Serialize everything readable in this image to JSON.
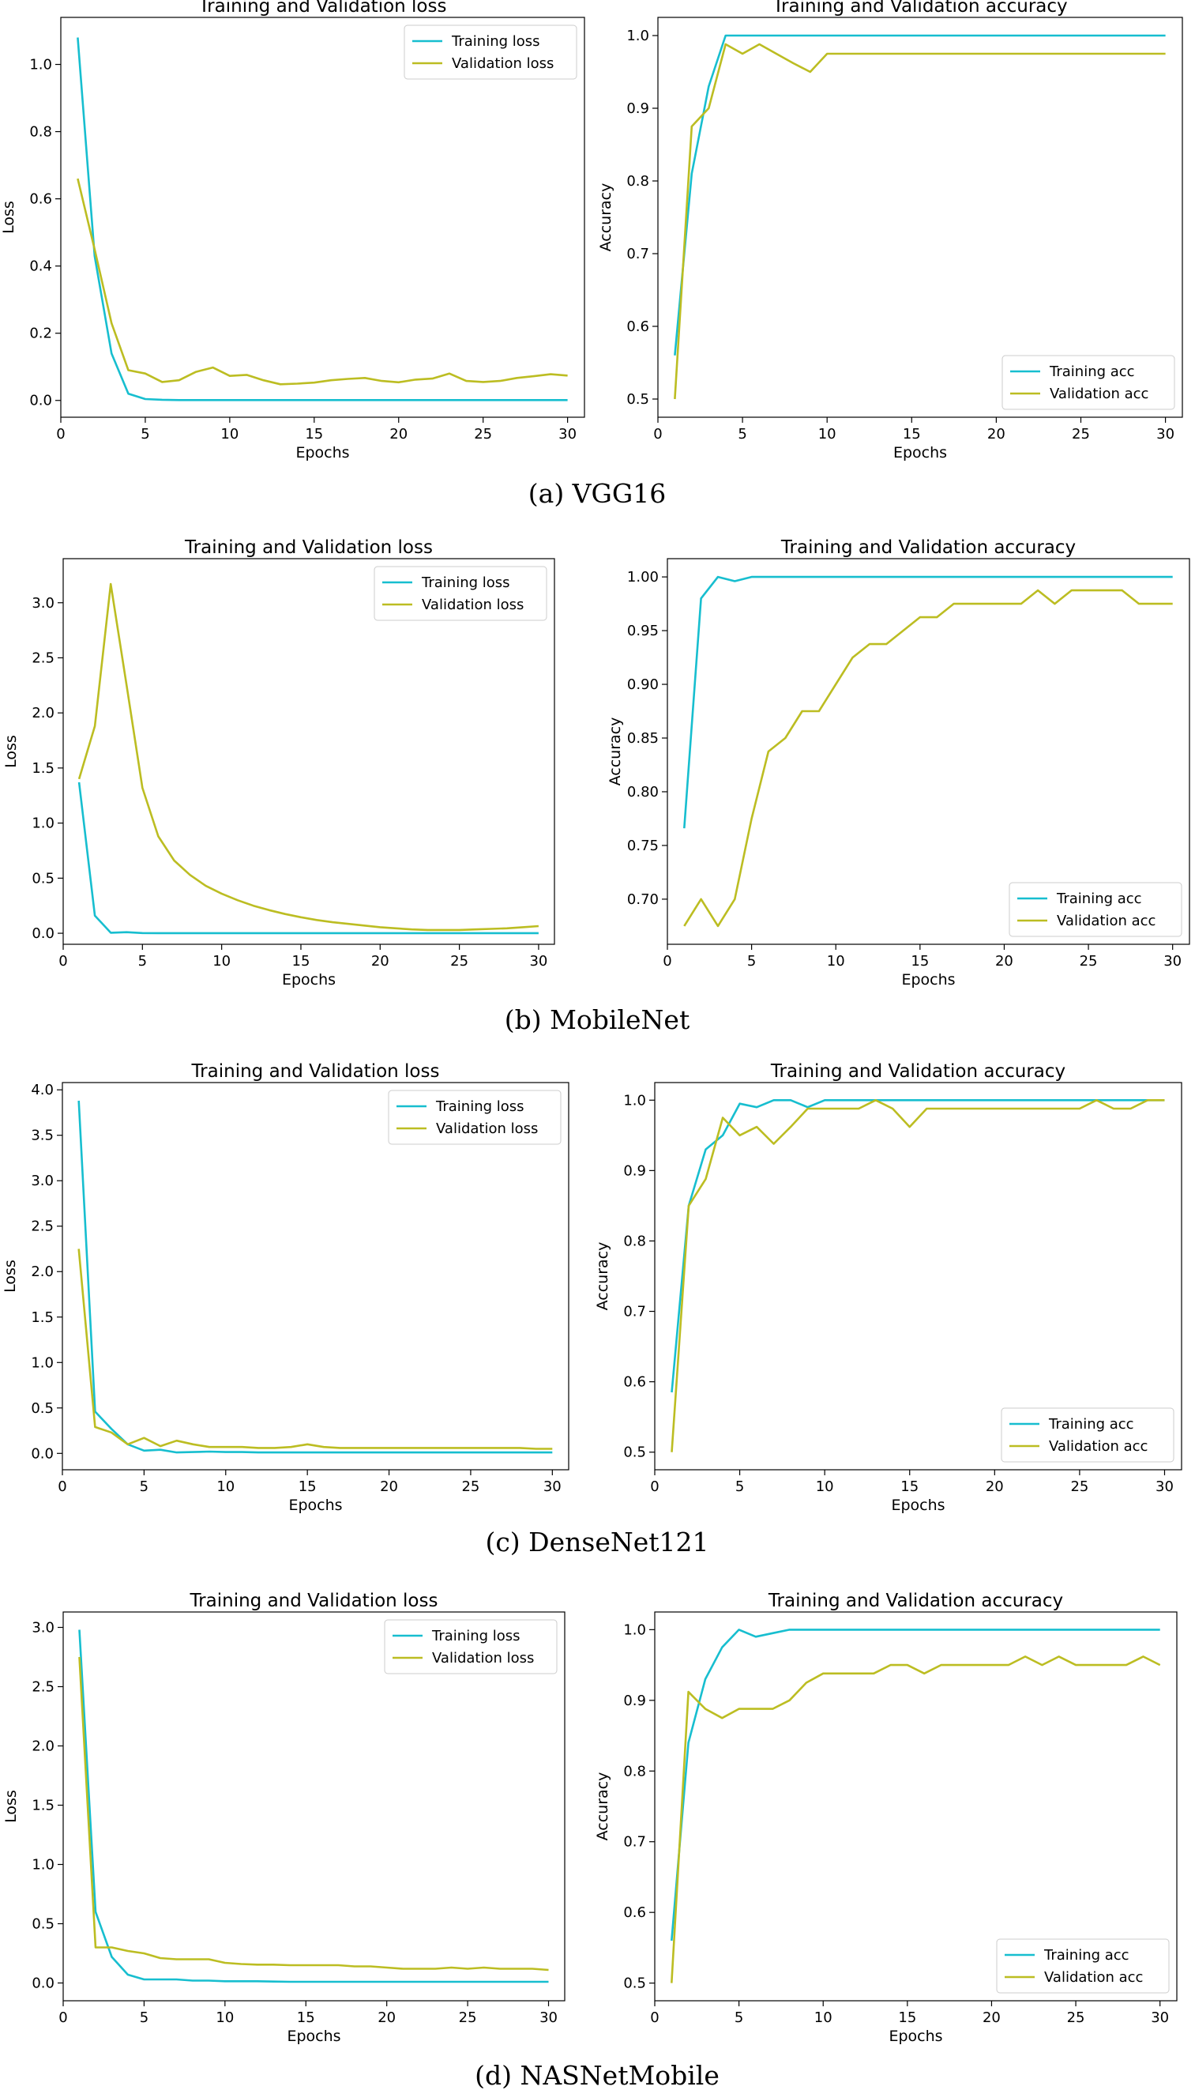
{
  "colors": {
    "training": "#17becf",
    "validation": "#bcbd22"
  },
  "captions": [
    "(a)   VGG16",
    "(b)   MobileNet",
    "(c)   DenseNet121",
    "(d)   NASNetMobile"
  ],
  "chart_data": [
    {
      "type": "line",
      "title": "Training and Validation loss",
      "xlabel": "Epochs",
      "ylabel": "Loss",
      "xlim": [
        0,
        31
      ],
      "ylim": [
        -0.05,
        1.14
      ],
      "xticks": [
        0,
        5,
        10,
        15,
        20,
        25,
        30
      ],
      "yticks": [
        0.0,
        0.2,
        0.4,
        0.6,
        0.8,
        1.0
      ],
      "ytick_labels": [
        "0.0",
        "0.2",
        "0.4",
        "0.6",
        "0.8",
        "1.0"
      ],
      "legend": "top-right",
      "x": [
        1,
        2,
        3,
        4,
        5,
        6,
        7,
        8,
        9,
        10,
        11,
        12,
        13,
        14,
        15,
        16,
        17,
        18,
        19,
        20,
        21,
        22,
        23,
        24,
        25,
        26,
        27,
        28,
        29,
        30
      ],
      "series": [
        {
          "name": "Training loss",
          "color": "training",
          "values": [
            1.08,
            0.43,
            0.14,
            0.02,
            0.004,
            0.002,
            0.001,
            0.001,
            0.001,
            0.001,
            0.001,
            0.001,
            0.001,
            0.001,
            0.001,
            0.001,
            0.001,
            0.001,
            0.001,
            0.001,
            0.001,
            0.001,
            0.001,
            0.001,
            0.001,
            0.001,
            0.001,
            0.001,
            0.001,
            0.001
          ]
        },
        {
          "name": "Validation loss",
          "color": "validation",
          "values": [
            0.66,
            0.45,
            0.23,
            0.09,
            0.08,
            0.055,
            0.06,
            0.085,
            0.098,
            0.073,
            0.076,
            0.06,
            0.048,
            0.05,
            0.053,
            0.06,
            0.064,
            0.067,
            0.058,
            0.054,
            0.062,
            0.065,
            0.08,
            0.058,
            0.055,
            0.058,
            0.067,
            0.072,
            0.078,
            0.074
          ]
        }
      ]
    },
    {
      "type": "line",
      "title": "Training and Validation accuracy",
      "xlabel": "Epochs",
      "ylabel": "Accuracy",
      "xlim": [
        0,
        31
      ],
      "ylim": [
        0.475,
        1.025
      ],
      "xticks": [
        0,
        5,
        10,
        15,
        20,
        25,
        30
      ],
      "yticks": [
        0.5,
        0.6,
        0.7,
        0.8,
        0.9,
        1.0
      ],
      "ytick_labels": [
        "0.5",
        "0.6",
        "0.7",
        "0.8",
        "0.9",
        "1.0"
      ],
      "legend": "bottom-right",
      "x": [
        1,
        2,
        3,
        4,
        5,
        6,
        7,
        8,
        9,
        10,
        11,
        12,
        13,
        14,
        15,
        16,
        17,
        18,
        19,
        20,
        21,
        22,
        23,
        24,
        25,
        26,
        27,
        28,
        29,
        30
      ],
      "series": [
        {
          "name": "Training acc",
          "color": "training",
          "values": [
            0.56,
            0.81,
            0.93,
            1.0,
            1.0,
            1.0,
            1.0,
            1.0,
            1.0,
            1.0,
            1.0,
            1.0,
            1.0,
            1.0,
            1.0,
            1.0,
            1.0,
            1.0,
            1.0,
            1.0,
            1.0,
            1.0,
            1.0,
            1.0,
            1.0,
            1.0,
            1.0,
            1.0,
            1.0,
            1.0
          ]
        },
        {
          "name": "Validation acc",
          "color": "validation",
          "values": [
            0.5,
            0.875,
            0.9,
            0.988,
            0.975,
            0.988,
            0.975,
            0.962,
            0.95,
            0.975,
            0.975,
            0.975,
            0.975,
            0.975,
            0.975,
            0.975,
            0.975,
            0.975,
            0.975,
            0.975,
            0.975,
            0.975,
            0.975,
            0.975,
            0.975,
            0.975,
            0.975,
            0.975,
            0.975,
            0.975
          ]
        }
      ]
    },
    {
      "type": "line",
      "title": "Training and Validation loss",
      "xlabel": "Epochs",
      "ylabel": "Loss",
      "xlim": [
        0,
        31
      ],
      "ylim": [
        -0.1,
        3.4
      ],
      "xticks": [
        0,
        5,
        10,
        15,
        20,
        25,
        30
      ],
      "yticks": [
        0.0,
        0.5,
        1.0,
        1.5,
        2.0,
        2.5,
        3.0
      ],
      "ytick_labels": [
        "0.0",
        "0.5",
        "1.0",
        "1.5",
        "2.0",
        "2.5",
        "3.0"
      ],
      "legend": "top-right",
      "x": [
        1,
        2,
        3,
        4,
        5,
        6,
        7,
        8,
        9,
        10,
        11,
        12,
        13,
        14,
        15,
        16,
        17,
        18,
        19,
        20,
        21,
        22,
        23,
        24,
        25,
        26,
        27,
        28,
        29,
        30
      ],
      "series": [
        {
          "name": "Training loss",
          "color": "training",
          "values": [
            1.37,
            0.16,
            0.005,
            0.01,
            0.002,
            0.001,
            0.001,
            0.001,
            0.001,
            0.001,
            0.001,
            0.001,
            0.001,
            0.001,
            0.001,
            0.001,
            0.001,
            0.001,
            0.001,
            0.001,
            0.001,
            0.001,
            0.001,
            0.001,
            0.001,
            0.001,
            0.001,
            0.001,
            0.001,
            0.001
          ]
        },
        {
          "name": "Validation loss",
          "color": "validation",
          "values": [
            1.4,
            1.88,
            3.17,
            2.25,
            1.32,
            0.88,
            0.66,
            0.53,
            0.43,
            0.36,
            0.3,
            0.25,
            0.21,
            0.175,
            0.145,
            0.12,
            0.1,
            0.085,
            0.07,
            0.055,
            0.045,
            0.035,
            0.03,
            0.03,
            0.03,
            0.035,
            0.04,
            0.045,
            0.055,
            0.065
          ]
        }
      ]
    },
    {
      "type": "line",
      "title": "Training and Validation accuracy",
      "xlabel": "Epochs",
      "ylabel": "Accuracy",
      "xlim": [
        0,
        31
      ],
      "ylim": [
        0.658,
        1.017
      ],
      "xticks": [
        0,
        5,
        10,
        15,
        20,
        25,
        30
      ],
      "yticks": [
        0.7,
        0.75,
        0.8,
        0.85,
        0.9,
        0.95,
        1.0
      ],
      "ytick_labels": [
        "0.70",
        "0.75",
        "0.80",
        "0.85",
        "0.90",
        "0.95",
        "1.00"
      ],
      "legend": "bottom-right",
      "x": [
        1,
        2,
        3,
        4,
        5,
        6,
        7,
        8,
        9,
        10,
        11,
        12,
        13,
        14,
        15,
        16,
        17,
        18,
        19,
        20,
        21,
        22,
        23,
        24,
        25,
        26,
        27,
        28,
        29,
        30
      ],
      "series": [
        {
          "name": "Training acc",
          "color": "training",
          "values": [
            0.766,
            0.98,
            1.0,
            0.996,
            1.0,
            1.0,
            1.0,
            1.0,
            1.0,
            1.0,
            1.0,
            1.0,
            1.0,
            1.0,
            1.0,
            1.0,
            1.0,
            1.0,
            1.0,
            1.0,
            1.0,
            1.0,
            1.0,
            1.0,
            1.0,
            1.0,
            1.0,
            1.0,
            1.0,
            1.0
          ]
        },
        {
          "name": "Validation acc",
          "color": "validation",
          "values": [
            0.675,
            0.7,
            0.675,
            0.7,
            0.775,
            0.8375,
            0.85,
            0.875,
            0.875,
            0.9,
            0.925,
            0.9375,
            0.9375,
            0.95,
            0.9625,
            0.9625,
            0.975,
            0.975,
            0.975,
            0.975,
            0.975,
            0.9875,
            0.975,
            0.9875,
            0.9875,
            0.9875,
            0.9875,
            0.975,
            0.975,
            0.975
          ]
        }
      ]
    },
    {
      "type": "line",
      "title": "Training and Validation loss",
      "xlabel": "Epochs",
      "ylabel": "Loss",
      "xlim": [
        0,
        31
      ],
      "ylim": [
        -0.18,
        4.08
      ],
      "xticks": [
        0,
        5,
        10,
        15,
        20,
        25,
        30
      ],
      "yticks": [
        0.0,
        0.5,
        1.0,
        1.5,
        2.0,
        2.5,
        3.0,
        3.5,
        4.0
      ],
      "ytick_labels": [
        "0.0",
        "0.5",
        "1.0",
        "1.5",
        "2.0",
        "2.5",
        "3.0",
        "3.5",
        "4.0"
      ],
      "legend": "top-right",
      "x": [
        1,
        2,
        3,
        4,
        5,
        6,
        7,
        8,
        9,
        10,
        11,
        12,
        13,
        14,
        15,
        16,
        17,
        18,
        19,
        20,
        21,
        22,
        23,
        24,
        25,
        26,
        27,
        28,
        29,
        30
      ],
      "series": [
        {
          "name": "Training loss",
          "color": "training",
          "values": [
            3.88,
            0.46,
            0.27,
            0.1,
            0.03,
            0.04,
            0.01,
            0.015,
            0.02,
            0.015,
            0.015,
            0.01,
            0.01,
            0.01,
            0.01,
            0.01,
            0.01,
            0.01,
            0.01,
            0.01,
            0.01,
            0.01,
            0.01,
            0.01,
            0.01,
            0.01,
            0.01,
            0.01,
            0.01,
            0.01
          ]
        },
        {
          "name": "Validation loss",
          "color": "validation",
          "values": [
            2.25,
            0.29,
            0.23,
            0.1,
            0.17,
            0.08,
            0.14,
            0.1,
            0.07,
            0.07,
            0.07,
            0.06,
            0.06,
            0.07,
            0.1,
            0.07,
            0.06,
            0.06,
            0.06,
            0.06,
            0.06,
            0.06,
            0.06,
            0.06,
            0.06,
            0.06,
            0.06,
            0.06,
            0.05,
            0.05
          ]
        }
      ]
    },
    {
      "type": "line",
      "title": "Training and Validation accuracy",
      "xlabel": "Epochs",
      "ylabel": "Accuracy",
      "xlim": [
        0,
        31
      ],
      "ylim": [
        0.475,
        1.025
      ],
      "xticks": [
        0,
        5,
        10,
        15,
        20,
        25,
        30
      ],
      "yticks": [
        0.5,
        0.6,
        0.7,
        0.8,
        0.9,
        1.0
      ],
      "ytick_labels": [
        "0.5",
        "0.6",
        "0.7",
        "0.8",
        "0.9",
        "1.0"
      ],
      "legend": "bottom-right",
      "x": [
        1,
        2,
        3,
        4,
        5,
        6,
        7,
        8,
        9,
        10,
        11,
        12,
        13,
        14,
        15,
        16,
        17,
        18,
        19,
        20,
        21,
        22,
        23,
        24,
        25,
        26,
        27,
        28,
        29,
        30
      ],
      "series": [
        {
          "name": "Training acc",
          "color": "training",
          "values": [
            0.585,
            0.85,
            0.93,
            0.95,
            0.995,
            0.99,
            1.0,
            1.0,
            0.99,
            1.0,
            1.0,
            1.0,
            1.0,
            1.0,
            1.0,
            1.0,
            1.0,
            1.0,
            1.0,
            1.0,
            1.0,
            1.0,
            1.0,
            1.0,
            1.0,
            1.0,
            1.0,
            1.0,
            1.0,
            1.0
          ]
        },
        {
          "name": "Validation acc",
          "color": "validation",
          "values": [
            0.5,
            0.85,
            0.888,
            0.975,
            0.95,
            0.962,
            0.938,
            0.962,
            0.988,
            0.988,
            0.988,
            0.988,
            1.0,
            0.988,
            0.962,
            0.988,
            0.988,
            0.988,
            0.988,
            0.988,
            0.988,
            0.988,
            0.988,
            0.988,
            0.988,
            1.0,
            0.988,
            0.988,
            1.0,
            1.0
          ]
        }
      ]
    },
    {
      "type": "line",
      "title": "Training and Validation loss",
      "xlabel": "Epochs",
      "ylabel": "Loss",
      "xlim": [
        0,
        31
      ],
      "ylim": [
        -0.15,
        3.13
      ],
      "xticks": [
        0,
        5,
        10,
        15,
        20,
        25,
        30
      ],
      "yticks": [
        0.0,
        0.5,
        1.0,
        1.5,
        2.0,
        2.5,
        3.0
      ],
      "ytick_labels": [
        "0.0",
        "0.5",
        "1.0",
        "1.5",
        "2.0",
        "2.5",
        "3.0"
      ],
      "legend": "top-right",
      "x": [
        1,
        2,
        3,
        4,
        5,
        6,
        7,
        8,
        9,
        10,
        11,
        12,
        13,
        14,
        15,
        16,
        17,
        18,
        19,
        20,
        21,
        22,
        23,
        24,
        25,
        26,
        27,
        28,
        29,
        30
      ],
      "series": [
        {
          "name": "Training loss",
          "color": "training",
          "values": [
            2.98,
            0.6,
            0.22,
            0.07,
            0.03,
            0.03,
            0.03,
            0.02,
            0.02,
            0.015,
            0.015,
            0.015,
            0.012,
            0.01,
            0.01,
            0.01,
            0.01,
            0.01,
            0.01,
            0.01,
            0.01,
            0.01,
            0.01,
            0.01,
            0.01,
            0.01,
            0.01,
            0.01,
            0.01,
            0.01
          ]
        },
        {
          "name": "Validation loss",
          "color": "validation",
          "values": [
            2.75,
            0.3,
            0.3,
            0.27,
            0.25,
            0.21,
            0.2,
            0.2,
            0.2,
            0.17,
            0.16,
            0.155,
            0.155,
            0.15,
            0.15,
            0.15,
            0.15,
            0.14,
            0.14,
            0.13,
            0.12,
            0.12,
            0.12,
            0.13,
            0.12,
            0.13,
            0.12,
            0.12,
            0.12,
            0.11
          ]
        }
      ]
    },
    {
      "type": "line",
      "title": "Training and Validation accuracy",
      "xlabel": "Epochs",
      "ylabel": "Accuracy",
      "xlim": [
        0,
        31
      ],
      "ylim": [
        0.475,
        1.025
      ],
      "xticks": [
        0,
        5,
        10,
        15,
        20,
        25,
        30
      ],
      "yticks": [
        0.5,
        0.6,
        0.7,
        0.8,
        0.9,
        1.0
      ],
      "ytick_labels": [
        "0.5",
        "0.6",
        "0.7",
        "0.8",
        "0.9",
        "1.0"
      ],
      "legend": "bottom-right",
      "x": [
        1,
        2,
        3,
        4,
        5,
        6,
        7,
        8,
        9,
        10,
        11,
        12,
        13,
        14,
        15,
        16,
        17,
        18,
        19,
        20,
        21,
        22,
        23,
        24,
        25,
        26,
        27,
        28,
        29,
        30
      ],
      "series": [
        {
          "name": "Training acc",
          "color": "training",
          "values": [
            0.56,
            0.84,
            0.93,
            0.975,
            1.0,
            0.99,
            0.995,
            1.0,
            1.0,
            1.0,
            1.0,
            1.0,
            1.0,
            1.0,
            1.0,
            1.0,
            1.0,
            1.0,
            1.0,
            1.0,
            1.0,
            1.0,
            1.0,
            1.0,
            1.0,
            1.0,
            1.0,
            1.0,
            1.0,
            1.0
          ]
        },
        {
          "name": "Validation acc",
          "color": "validation",
          "values": [
            0.5,
            0.912,
            0.888,
            0.875,
            0.888,
            0.888,
            0.888,
            0.9,
            0.925,
            0.938,
            0.938,
            0.938,
            0.938,
            0.95,
            0.95,
            0.938,
            0.95,
            0.95,
            0.95,
            0.95,
            0.95,
            0.962,
            0.95,
            0.962,
            0.95,
            0.95,
            0.95,
            0.95,
            0.962,
            0.95
          ]
        }
      ]
    }
  ]
}
